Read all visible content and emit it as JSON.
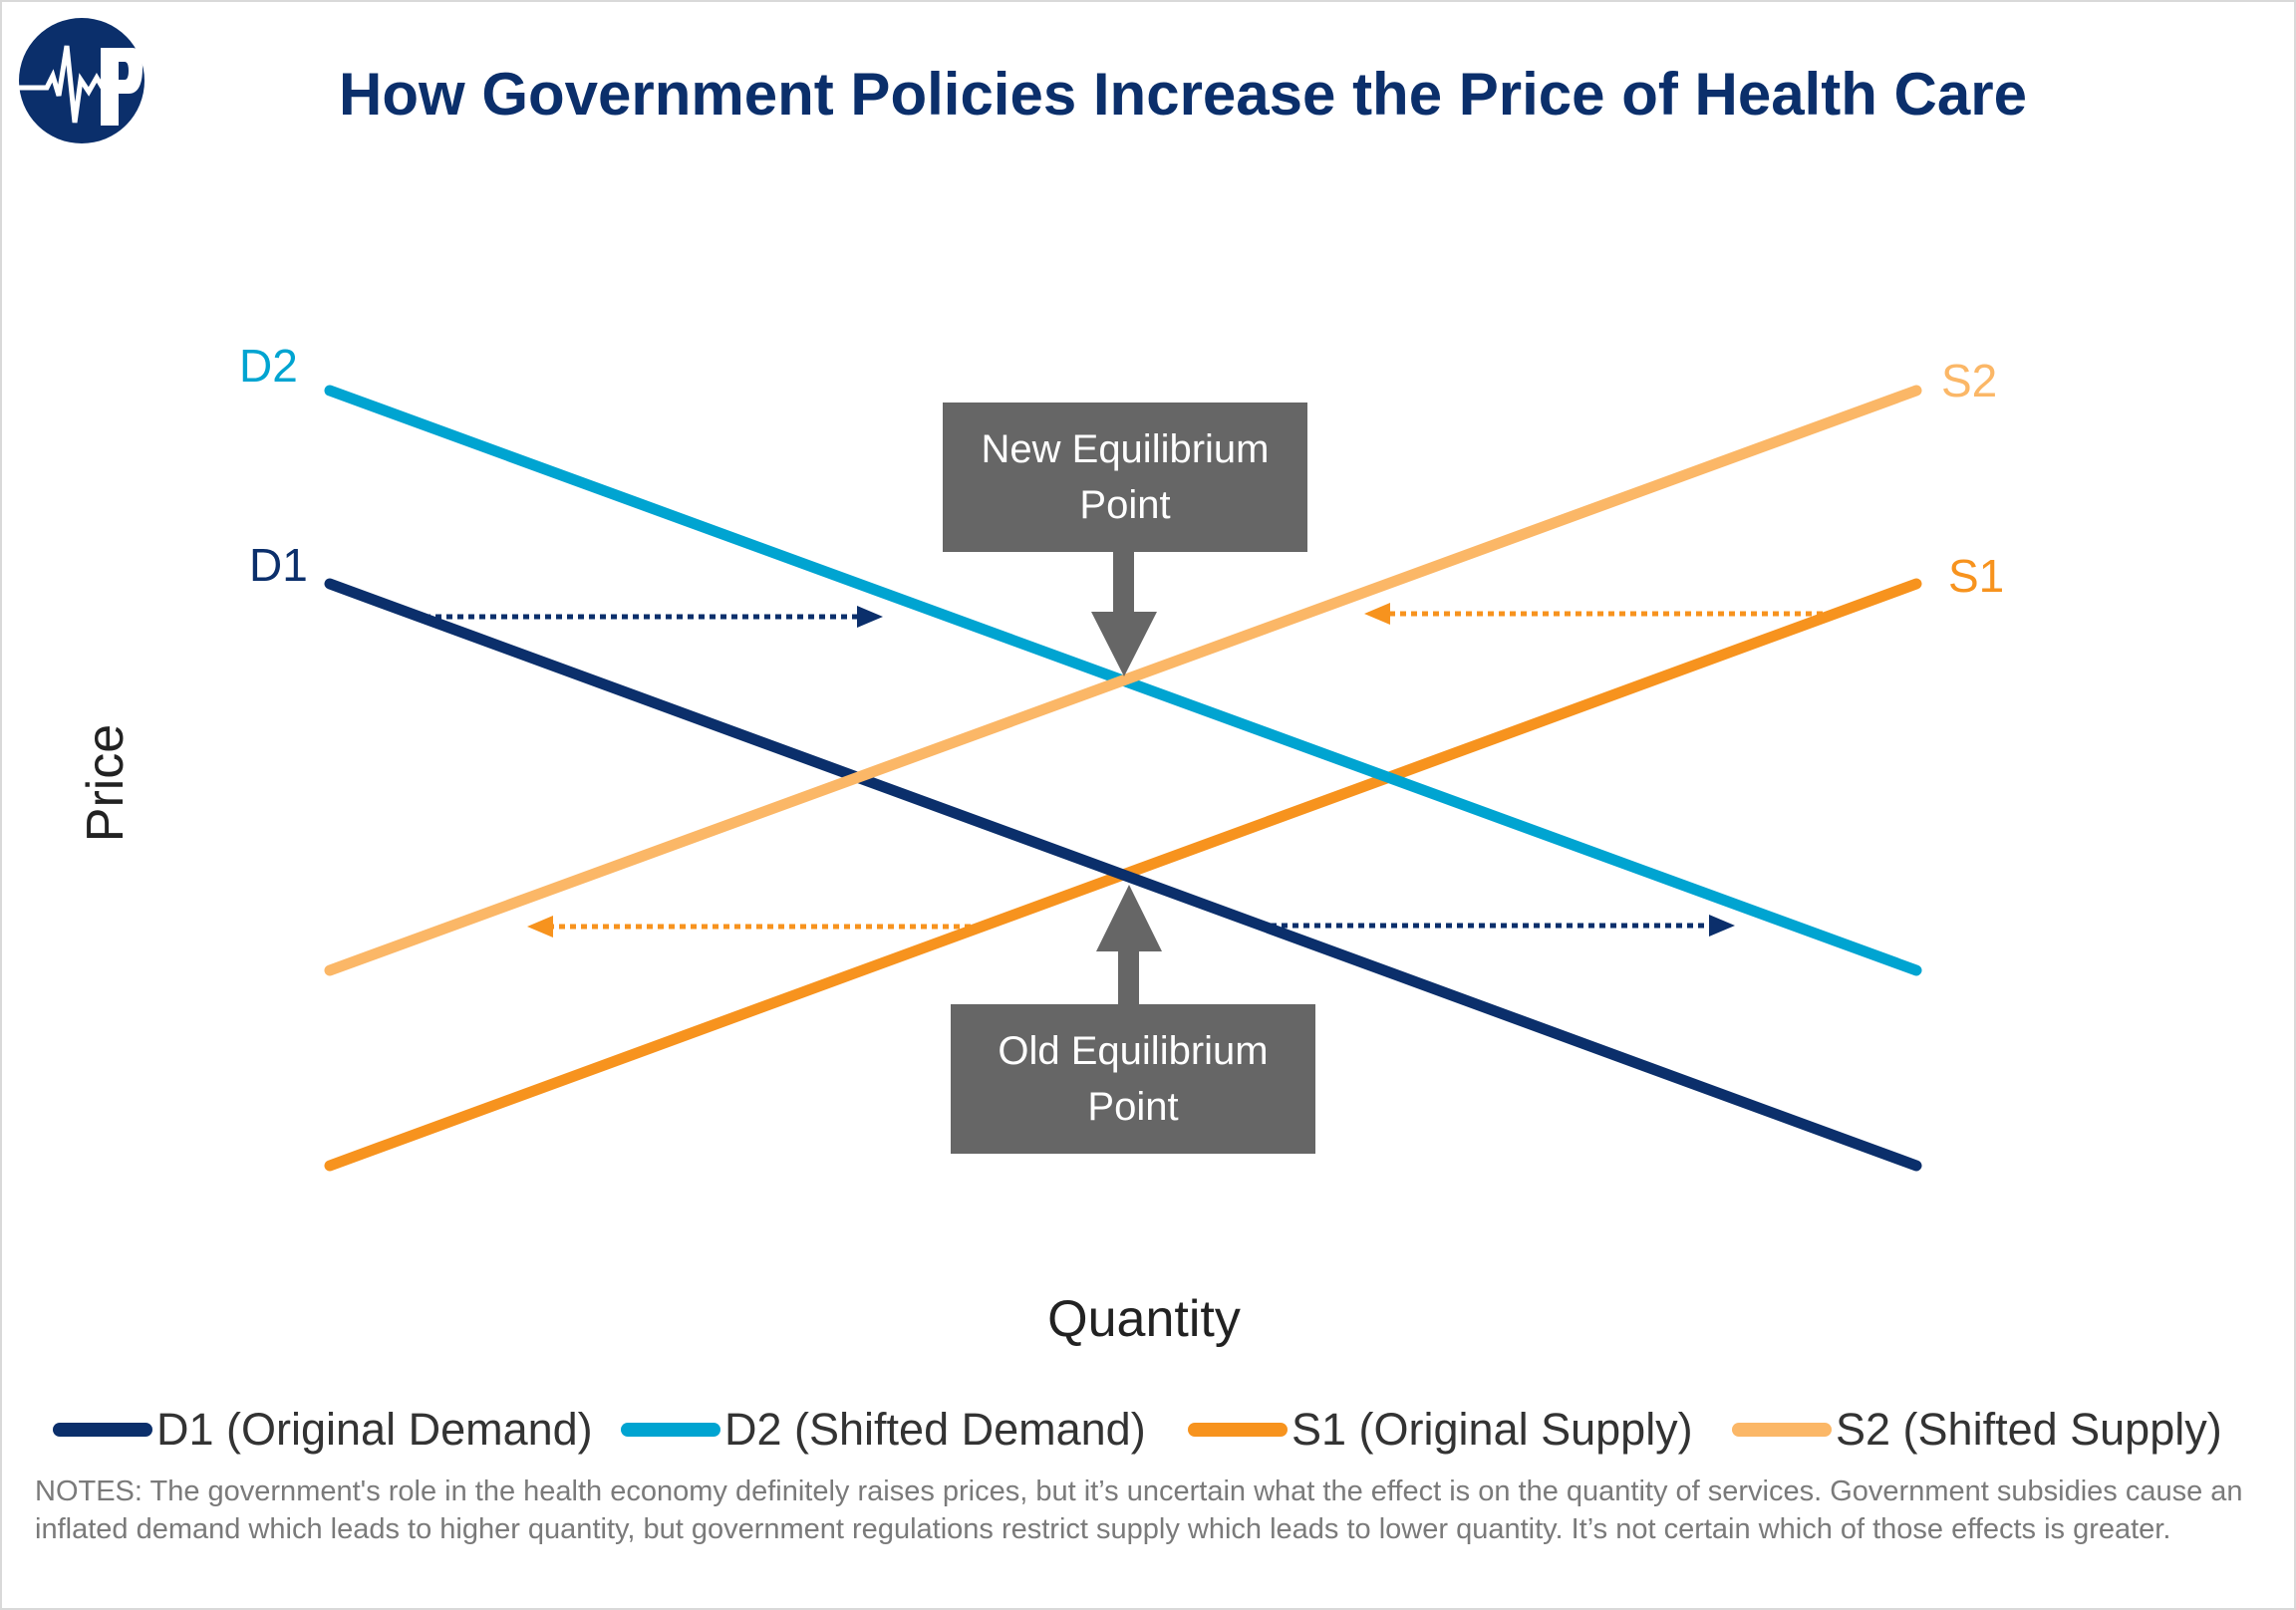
{
  "title": "How Government Policies Increase the Price of Health Care",
  "logo": {
    "icon": "heartbeat-p-logo",
    "text": "P",
    "color": "#0b2f6b"
  },
  "series": [
    {
      "key": "D1",
      "name": "D1 (Original Demand)",
      "label": "D1",
      "color": "#0b2f6b"
    },
    {
      "key": "D2",
      "name": "D2 (Shifted Demand)",
      "label": "D2",
      "color": "#00a4d1"
    },
    {
      "key": "S1",
      "name": "S1 (Original Supply)",
      "label": "S1",
      "color": "#f7931e"
    },
    {
      "key": "S2",
      "name": "S2 (Shifted Supply)",
      "label": "S2",
      "color": "#fbb767"
    }
  ],
  "annotations": {
    "new_equilibrium": "New Equilibrium Point",
    "old_equilibrium": "Old Equilibrium Point",
    "box_color": "#666666"
  },
  "axes": {
    "y_label": "Price",
    "x_label": "Quantity"
  },
  "notes": "NOTES:  The government's role in the health economy definitely raises prices, but it’s uncertain what the effect is on the quantity of services. Government subsidies cause an inflated demand which leads to higher quantity, but government regulations restrict supply which leads to lower quantity. It’s not certain which of those effects is greater."
}
